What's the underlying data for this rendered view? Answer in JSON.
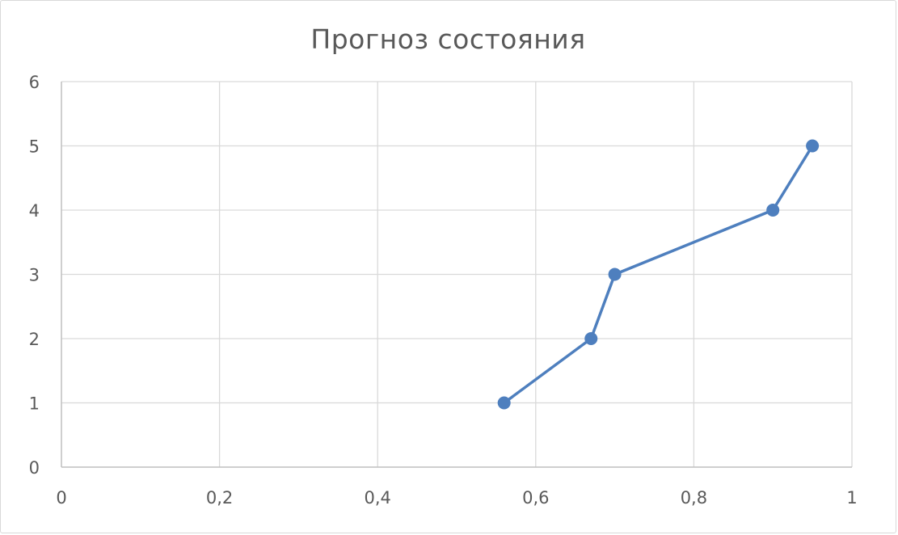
{
  "chart_data": {
    "type": "scatter",
    "title": "Прогноз состояния",
    "xlabel": "",
    "ylabel": "",
    "xlim": [
      0,
      1
    ],
    "ylim": [
      0,
      6
    ],
    "x_ticks": [
      "0",
      "0,2",
      "0,4",
      "0,6",
      "0,8",
      "1"
    ],
    "x_tick_values": [
      0,
      0.2,
      0.4,
      0.6,
      0.8,
      1
    ],
    "y_ticks": [
      "0",
      "1",
      "2",
      "3",
      "4",
      "5",
      "6"
    ],
    "y_tick_values": [
      0,
      1,
      2,
      3,
      4,
      5,
      6
    ],
    "grid": true,
    "legend": "none",
    "series": [
      {
        "style": "lines-and-markers",
        "color": "#4e7fbe",
        "points": [
          {
            "x": 0.56,
            "y": 1
          },
          {
            "x": 0.67,
            "y": 2
          },
          {
            "x": 0.7,
            "y": 3
          },
          {
            "x": 0.9,
            "y": 4
          },
          {
            "x": 0.95,
            "y": 5
          }
        ]
      }
    ]
  }
}
